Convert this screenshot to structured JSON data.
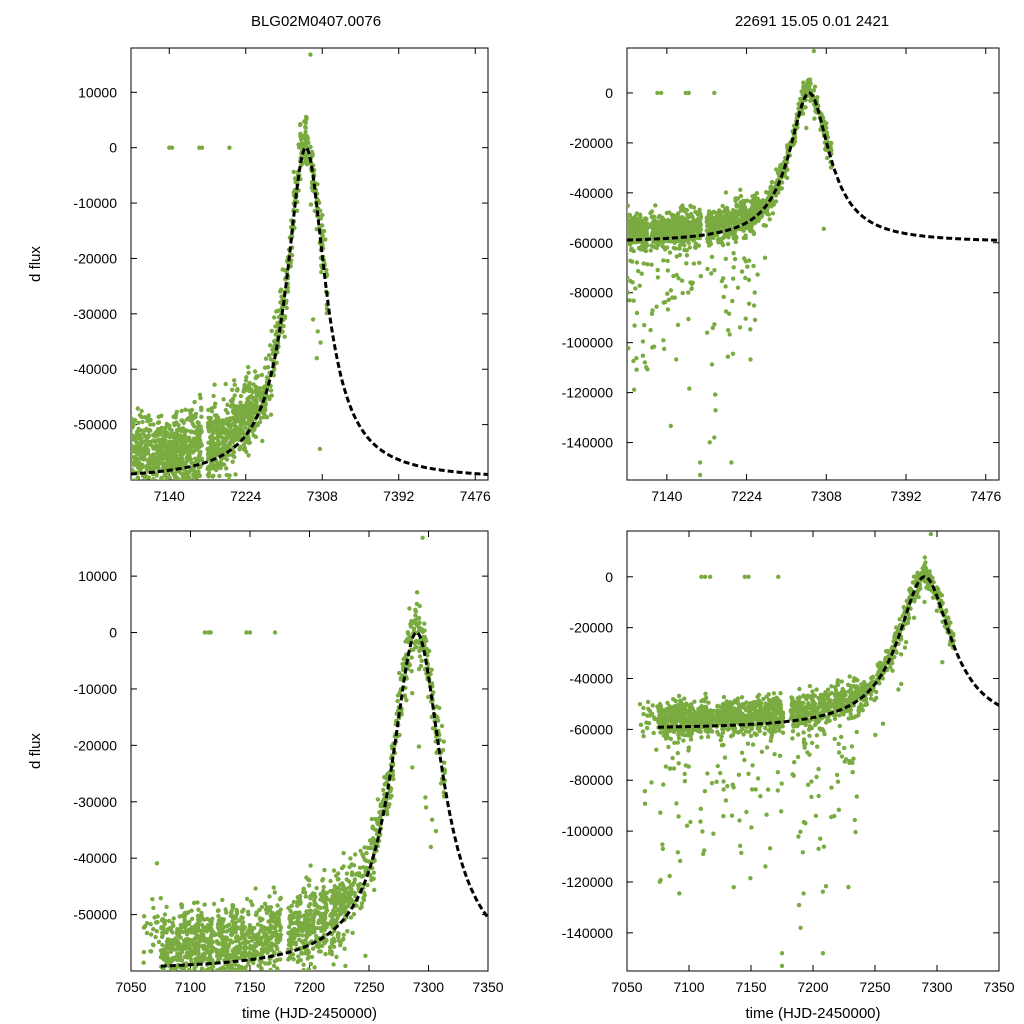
{
  "header": {
    "left_title": "BLG02M0407.0076",
    "right_title": "22691   15.05   0.01   2421"
  },
  "colors": {
    "points": "#7aab41",
    "model": "#000000",
    "frame": "#000000"
  },
  "chart_data": [
    {
      "id": "top-left",
      "type": "scatter",
      "title": "BLG02M0407.0076",
      "ylabel": "d flux",
      "xlabel": "",
      "xlim": [
        7098,
        7490
      ],
      "ylim": [
        -60000,
        18000
      ],
      "xticks": [
        7140,
        7224,
        7308,
        7392,
        7476
      ],
      "yticks": [
        10000,
        0,
        -10000,
        -20000,
        -30000,
        -40000,
        -50000
      ],
      "model": {
        "t0": 7290,
        "amp": 60000,
        "baseline": -60000,
        "tau": 26,
        "x_start": 7098,
        "x_end": 7490
      },
      "outliers": [
        [
          7140,
          0
        ],
        [
          7143,
          0
        ],
        [
          7173,
          0
        ],
        [
          7176,
          0
        ],
        [
          7206,
          0
        ],
        [
          7295,
          16800
        ],
        [
          7302,
          -38000
        ],
        [
          7298,
          -31000
        ]
      ],
      "grid": false
    },
    {
      "id": "top-right",
      "type": "scatter",
      "title": "22691   15.05   0.01   2421",
      "ylabel": "",
      "xlabel": "",
      "xlim": [
        7098,
        7490
      ],
      "ylim": [
        -155000,
        18000
      ],
      "xticks": [
        7140,
        7224,
        7308,
        7392,
        7476
      ],
      "yticks": [
        0,
        -20000,
        -40000,
        -60000,
        -80000,
        -100000,
        -120000,
        -140000
      ],
      "model": {
        "t0": 7290,
        "amp": 60000,
        "baseline": -60000,
        "tau": 26,
        "x_start": 7098,
        "x_end": 7490
      },
      "outliers": [
        [
          7130,
          0
        ],
        [
          7134,
          0
        ],
        [
          7160,
          0
        ],
        [
          7163,
          0
        ],
        [
          7190,
          0
        ],
        [
          7295,
          16800
        ],
        [
          7175,
          -153000
        ],
        [
          7175,
          -148000
        ],
        [
          7208,
          -148000
        ],
        [
          7190,
          -138000
        ]
      ],
      "grid": false
    },
    {
      "id": "bottom-left",
      "type": "scatter",
      "title": "",
      "ylabel": "d flux",
      "xlabel": "time (HJD-2450000)",
      "xlim": [
        7050,
        7350
      ],
      "ylim": [
        -60000,
        18000
      ],
      "xticks": [
        7050,
        7100,
        7150,
        7200,
        7250,
        7300,
        7350
      ],
      "yticks": [
        10000,
        0,
        -10000,
        -20000,
        -30000,
        -40000,
        -50000
      ],
      "model": {
        "t0": 7290,
        "amp": 60000,
        "baseline": -60000,
        "tau": 26,
        "x_start": 7075,
        "x_end": 7350
      },
      "outliers": [
        [
          7112,
          0
        ],
        [
          7115,
          0
        ],
        [
          7117,
          0
        ],
        [
          7147,
          0
        ],
        [
          7150,
          0
        ],
        [
          7171,
          0
        ],
        [
          7295,
          16800
        ],
        [
          7302,
          -38000
        ],
        [
          7298,
          -31000
        ]
      ],
      "grid": false
    },
    {
      "id": "bottom-right",
      "type": "scatter",
      "title": "",
      "ylabel": "",
      "xlabel": "time (HJD-2450000)",
      "xlim": [
        7050,
        7350
      ],
      "ylim": [
        -155000,
        18000
      ],
      "xticks": [
        7050,
        7100,
        7150,
        7200,
        7250,
        7300,
        7350
      ],
      "yticks": [
        0,
        -20000,
        -40000,
        -60000,
        -80000,
        -100000,
        -120000,
        -140000
      ],
      "model": {
        "t0": 7290,
        "amp": 60000,
        "baseline": -60000,
        "tau": 26,
        "x_start": 7075,
        "x_end": 7350
      },
      "outliers": [
        [
          7110,
          0
        ],
        [
          7113,
          0
        ],
        [
          7117,
          0
        ],
        [
          7145,
          0
        ],
        [
          7148,
          0
        ],
        [
          7172,
          0
        ],
        [
          7295,
          16800
        ],
        [
          7175,
          -153000
        ],
        [
          7175,
          -148000
        ],
        [
          7208,
          -148000
        ],
        [
          7190,
          -138000
        ]
      ],
      "grid": false
    }
  ]
}
